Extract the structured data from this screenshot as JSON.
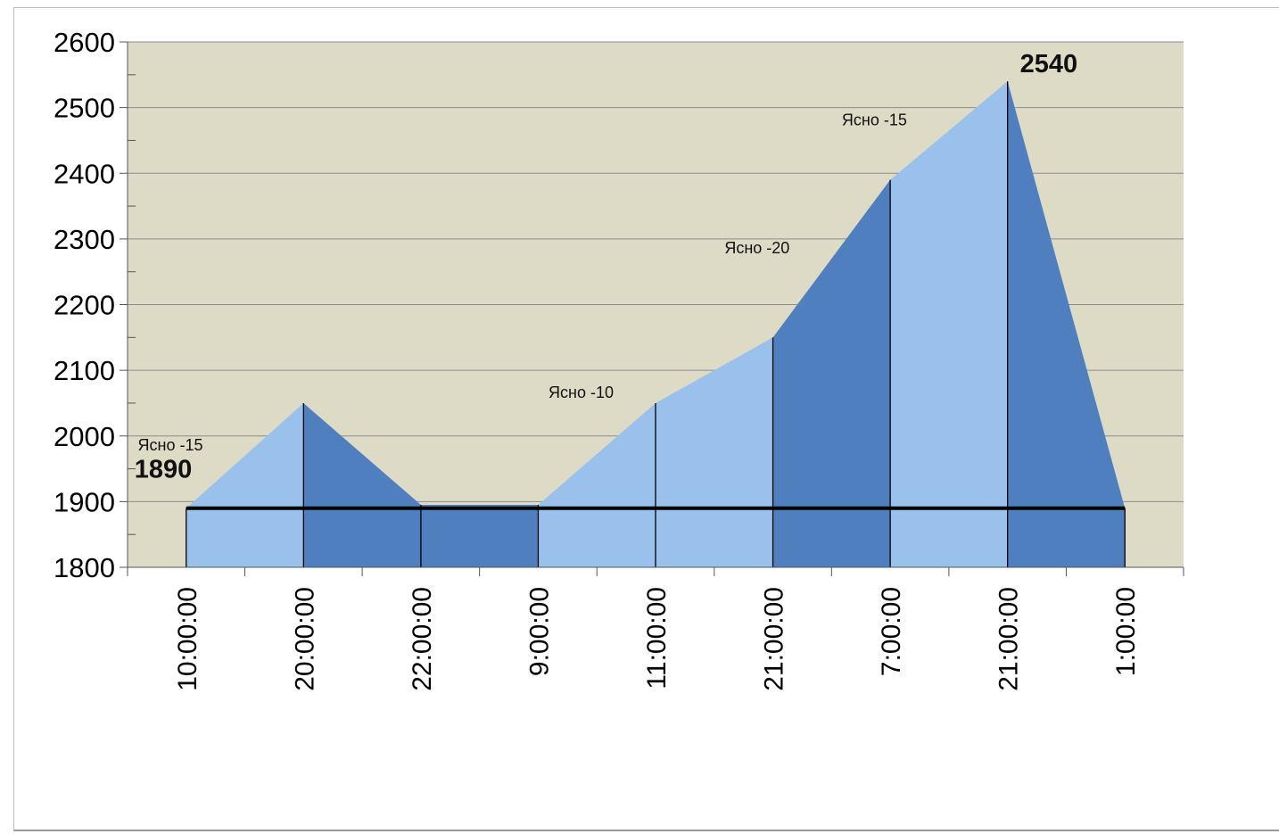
{
  "chart_data": {
    "type": "area",
    "title": "",
    "xlabel": "",
    "ylabel": "",
    "ylim": [
      1800,
      2600
    ],
    "yticks": [
      1800,
      1900,
      2000,
      2100,
      2200,
      2300,
      2400,
      2500,
      2600
    ],
    "categories": [
      "10:00:00",
      "20:00:00",
      "22:00:00",
      "9:00:00",
      "11:00:00",
      "21:00:00",
      "7:00:00",
      "21:00:00",
      "1:00:00"
    ],
    "values": [
      1890,
      2050,
      1895,
      1895,
      2050,
      2150,
      2390,
      2540,
      1890
    ],
    "baseline": 1890,
    "segment_shades": [
      "light",
      "dark",
      "dark",
      "light",
      "light",
      "dark",
      "light",
      "dark"
    ],
    "annotations": [
      {
        "text": "1890",
        "index": 0,
        "style": "big"
      },
      {
        "text": "Ясно -15",
        "index": 0.5,
        "style": "small"
      },
      {
        "text": "Ясно -10",
        "index": 4,
        "style": "small"
      },
      {
        "text": "Ясно -20",
        "index": 5.5,
        "style": "small"
      },
      {
        "text": "Ясно -15",
        "index": 6.5,
        "style": "small"
      },
      {
        "text": "2540",
        "index": 7,
        "style": "big"
      }
    ],
    "colors": {
      "plot_background": "#dddac6",
      "light_fill": "#99c1ec",
      "dark_fill": "#4f7fbe",
      "gridline": "#8c8c8c",
      "baseline": "#000000"
    }
  }
}
